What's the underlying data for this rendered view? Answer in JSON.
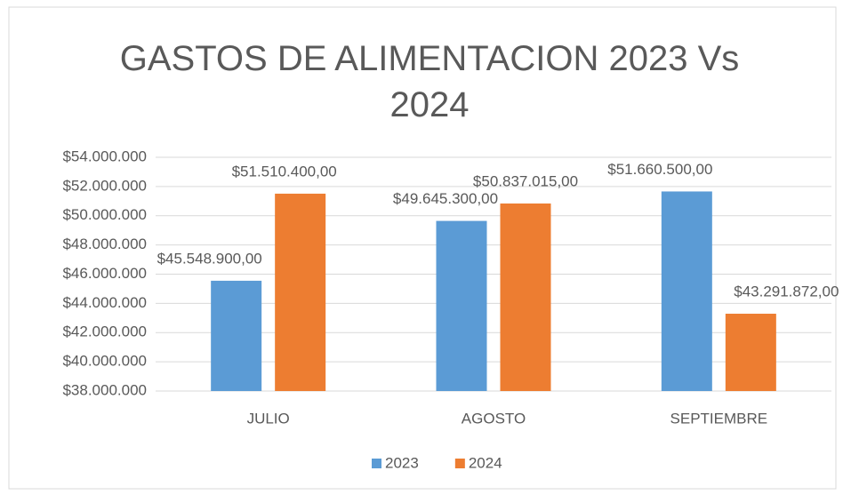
{
  "chart_data": {
    "type": "bar",
    "title": "GASTOS DE ALIMENTACION 2023 Vs 2024",
    "categories": [
      "JULIO",
      "AGOSTO",
      "SEPTIEMBRE"
    ],
    "series": [
      {
        "name": "2023",
        "color": "#5b9bd5",
        "values": [
          45548900,
          49645300,
          51660500
        ],
        "value_labels": [
          "$45.548.900,00",
          "$49.645.300,00",
          "$51.660.500,00"
        ]
      },
      {
        "name": "2024",
        "color": "#ed7d31",
        "values": [
          51510400,
          50837015,
          43291872
        ],
        "value_labels": [
          "$51.510.400,00",
          "$50.837.015,00",
          "$43.291.872,00"
        ]
      }
    ],
    "ylim": [
      38000000,
      54000000
    ],
    "yticks": [
      {
        "value": 38000000,
        "label": "$38.000.000"
      },
      {
        "value": 40000000,
        "label": "$40.000.000"
      },
      {
        "value": 42000000,
        "label": "$42.000.000"
      },
      {
        "value": 44000000,
        "label": "$44.000.000"
      },
      {
        "value": 46000000,
        "label": "$46.000.000"
      },
      {
        "value": 48000000,
        "label": "$48.000.000"
      },
      {
        "value": 50000000,
        "label": "$50.000.000"
      },
      {
        "value": 52000000,
        "label": "$52.000.000"
      },
      {
        "value": 54000000,
        "label": "$54.000.000"
      }
    ],
    "grid": true,
    "legend": "bottom"
  }
}
